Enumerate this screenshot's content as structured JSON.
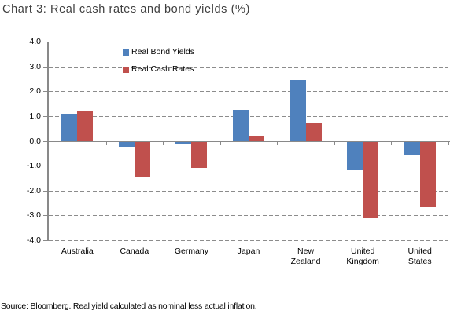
{
  "title": "Chart 3: Real cash rates and bond yields (%)",
  "source_note": "Source: Bloomberg.  Real yield calculated as nominal less actual inflation.",
  "colors": {
    "bond_series": "#4F81BD",
    "cash_series": "#C0504D",
    "axis": "#898989",
    "gridline": "#8c8c8c",
    "title_text": "#3f3f3f"
  },
  "chart_data": {
    "type": "bar",
    "title": "Chart 3: Real cash rates and bond yields (%)",
    "categories": [
      "Australia",
      "Canada",
      "Germany",
      "Japan",
      "New\nZealand",
      "United\nKingdom",
      "United\nStates"
    ],
    "series": [
      {
        "name": "Real Bond Yields",
        "color": "#4F81BD",
        "values": [
          1.1,
          -0.25,
          -0.15,
          1.25,
          2.45,
          -1.2,
          -0.6
        ]
      },
      {
        "name": "Real Cash Rates",
        "color": "#C0504D",
        "values": [
          1.2,
          -1.45,
          -1.1,
          0.2,
          0.7,
          -3.1,
          -2.65
        ]
      }
    ],
    "xlabel": "",
    "ylabel": "",
    "ylim": [
      -4.0,
      4.0
    ],
    "ytick_step": 1.0,
    "ytick_labels": [
      "4.0",
      "3.0",
      "2.0",
      "1.0",
      "0.0",
      "-1.0",
      "-2.0",
      "-3.0",
      "-4.0"
    ],
    "grid": "horizontal-dashed",
    "legend_position": "inside-top-left"
  }
}
